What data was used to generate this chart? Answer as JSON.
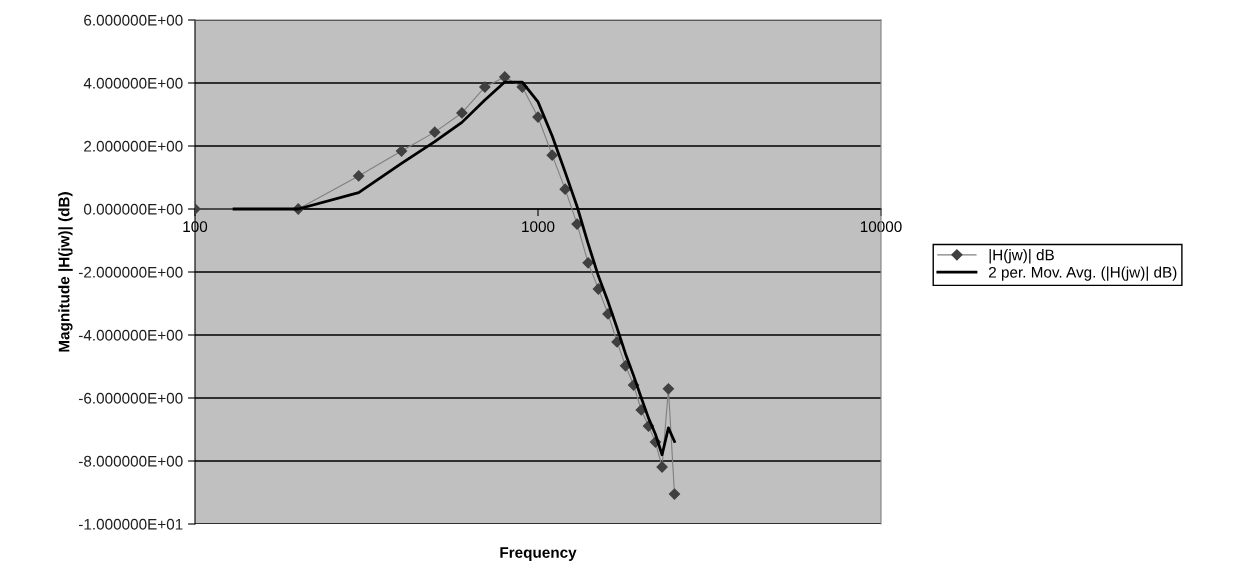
{
  "chart_data": {
    "type": "line",
    "xlabel": "Frequency",
    "ylabel": "Magnitude |H(jw)| (dB)",
    "log": "x",
    "xlim": [
      100,
      10000
    ],
    "xticks": [
      100,
      1000,
      10000
    ],
    "ylim": [
      -10,
      6
    ],
    "yticks": [
      {
        "value": 6,
        "label": "6.000000E+00"
      },
      {
        "value": 4,
        "label": "4.000000E+00"
      },
      {
        "value": 2,
        "label": "2.000000E+00"
      },
      {
        "value": 0,
        "label": "0.000000E+00"
      },
      {
        "value": -2,
        "label": "-2.000000E+00"
      },
      {
        "value": -4,
        "label": "-4.000000E+00"
      },
      {
        "value": -6,
        "label": "-6.000000E+00"
      },
      {
        "value": -8,
        "label": "-8.000000E+00"
      },
      {
        "value": -10,
        "label": "-1.000000E+01"
      }
    ],
    "grid": "y",
    "legend": "right",
    "line_style": "solid",
    "series": [
      {
        "name": "|H(jw)| dB",
        "color": "#404040",
        "marker": "diamond",
        "x": [
          100,
          200,
          300,
          400,
          500,
          600,
          700,
          800,
          900,
          1000,
          1100,
          1200,
          1300,
          1400,
          1500,
          1600,
          1700,
          1800,
          1900,
          2000,
          2100,
          2200,
          2300,
          2400,
          2500
        ],
        "values": [
          0,
          0,
          1.05,
          1.84,
          2.44,
          3.05,
          3.87,
          4.19,
          3.87,
          2.92,
          1.71,
          0.63,
          -0.48,
          -1.71,
          -2.54,
          -3.33,
          -4.22,
          -4.98,
          -5.59,
          -6.38,
          -6.89,
          -7.4,
          -8.19,
          -5.71,
          -9.05
        ]
      },
      {
        "name": "2 per. Mov. Avg. (|H(jw)| dB)",
        "color": "#000000",
        "marker": "none",
        "x": [
          130,
          200,
          300,
          400,
          500,
          600,
          700,
          800,
          900,
          1000,
          1100,
          1200,
          1300,
          1400,
          1500,
          1600,
          1700,
          1800,
          1900,
          2000,
          2100,
          2200,
          2300,
          2400,
          2500
        ],
        "values": [
          0,
          0,
          0.52,
          1.45,
          2.14,
          2.75,
          3.46,
          4.03,
          4.03,
          3.4,
          2.32,
          1.17,
          0.08,
          -1.1,
          -2.13,
          -2.94,
          -3.78,
          -4.6,
          -5.29,
          -5.99,
          -6.64,
          -7.15,
          -7.8,
          -6.95,
          -7.38
        ]
      }
    ]
  }
}
